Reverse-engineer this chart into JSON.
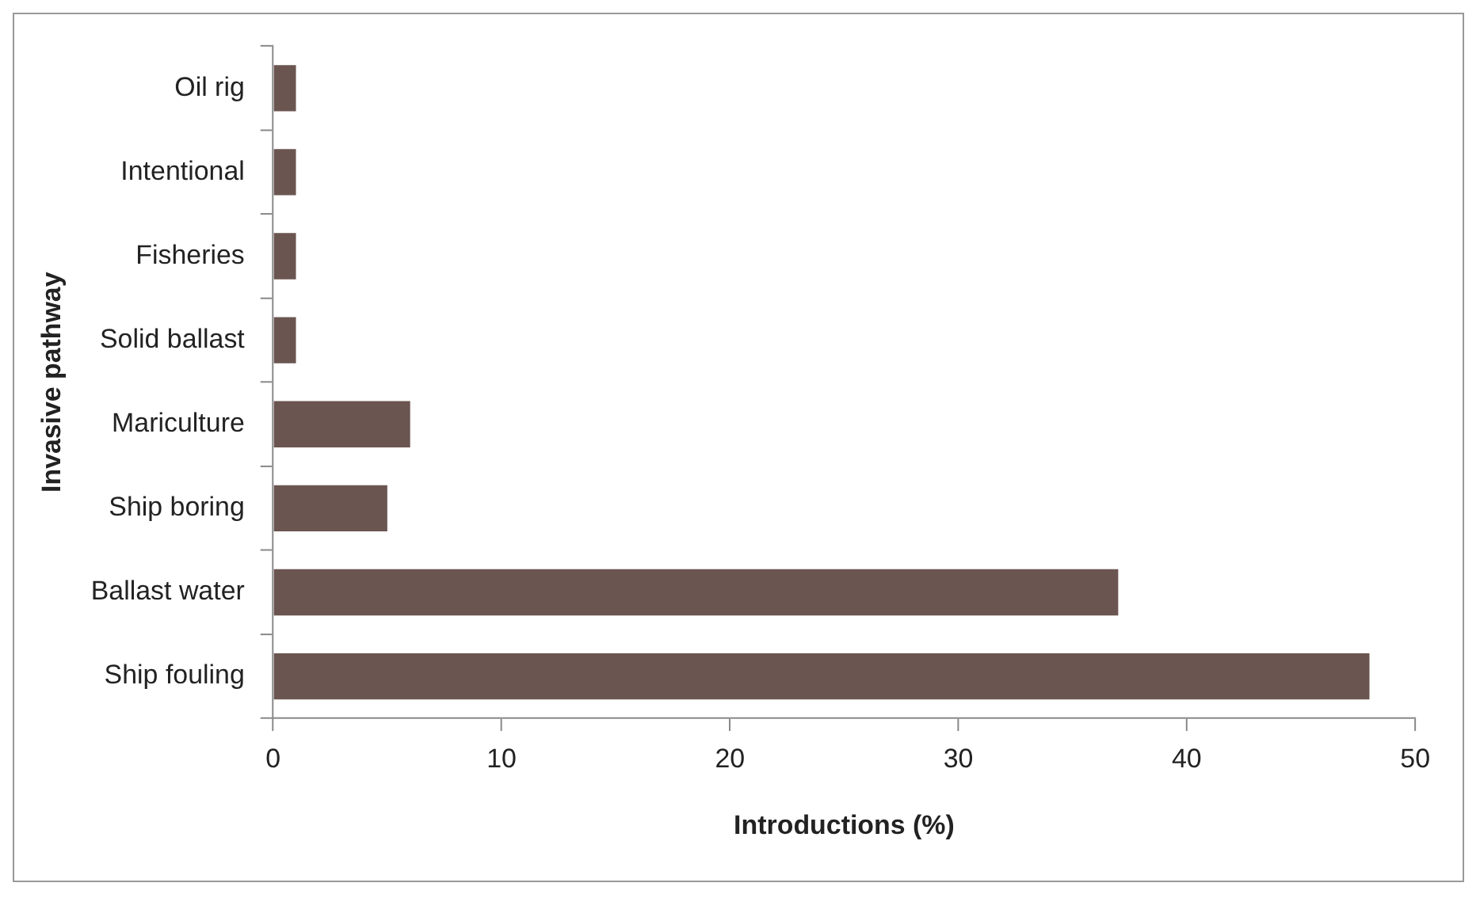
{
  "chart_data": {
    "type": "bar",
    "orientation": "horizontal",
    "xlabel": "Introductions (%)",
    "ylabel": "Invasive pathway",
    "categories": [
      "Oil rig",
      "Intentional",
      "Fisheries",
      "Solid ballast",
      "Mariculture",
      "Ship boring",
      "Ballast water",
      "Ship fouling"
    ],
    "values": [
      1,
      1,
      1,
      1,
      6,
      5,
      37,
      48
    ],
    "color": "#6b5550",
    "xlim": [
      0,
      50
    ],
    "xticks": [
      0,
      10,
      20,
      30,
      40,
      50
    ],
    "grid": false,
    "legend": false
  }
}
